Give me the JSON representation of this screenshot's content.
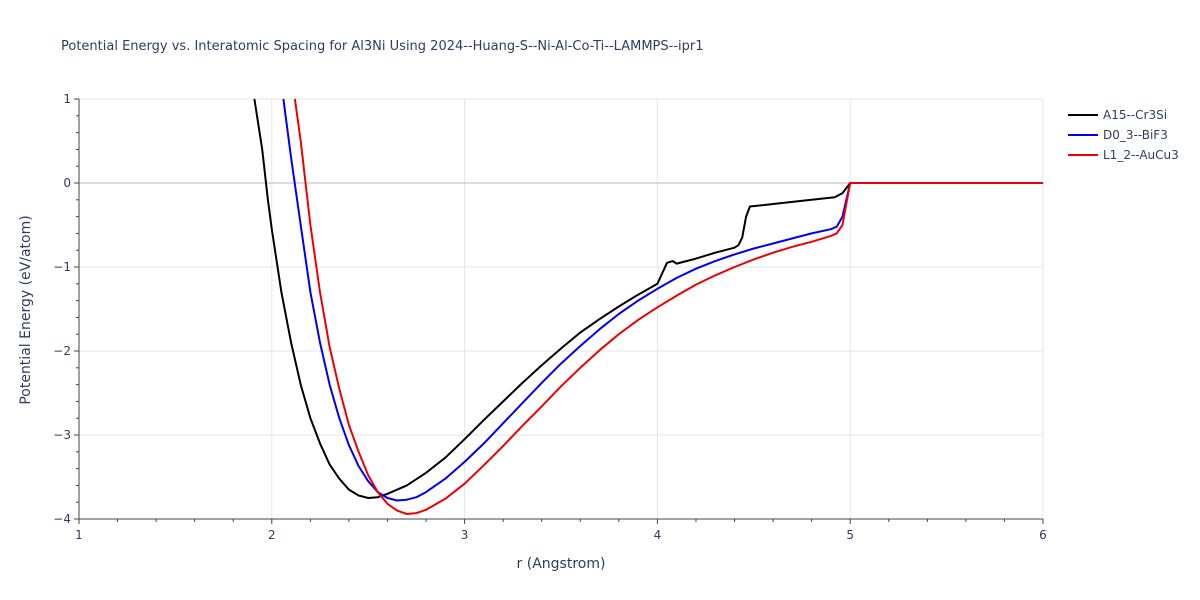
{
  "chart_data": {
    "type": "line",
    "title": "Potential Energy vs. Interatomic Spacing for Al3Ni Using 2024--Huang-S--Ni-Al-Co-Ti--LAMMPS--ipr1",
    "xlabel": "r (Angstrom)",
    "ylabel": "Potential Energy (eV/atom)",
    "xlim": [
      1,
      6
    ],
    "ylim": [
      -4,
      1
    ],
    "xticks": [
      1,
      2,
      3,
      4,
      5,
      6
    ],
    "yticks": [
      1,
      0,
      -1,
      -2,
      -3,
      -4
    ],
    "ytick_labels": [
      "1",
      "0",
      "−1",
      "−2",
      "−3",
      "−4"
    ],
    "grid": true,
    "legend_position": "top-right",
    "series": [
      {
        "name": "A15--Cr3Si",
        "color": "#000000",
        "points": [
          [
            1.91,
            1.0
          ],
          [
            1.95,
            0.4
          ],
          [
            1.98,
            -0.2
          ],
          [
            2.0,
            -0.55
          ],
          [
            2.05,
            -1.3
          ],
          [
            2.1,
            -1.9
          ],
          [
            2.15,
            -2.4
          ],
          [
            2.2,
            -2.8
          ],
          [
            2.25,
            -3.1
          ],
          [
            2.3,
            -3.35
          ],
          [
            2.35,
            -3.52
          ],
          [
            2.4,
            -3.65
          ],
          [
            2.45,
            -3.72
          ],
          [
            2.5,
            -3.75
          ],
          [
            2.55,
            -3.74
          ],
          [
            2.6,
            -3.7
          ],
          [
            2.7,
            -3.6
          ],
          [
            2.8,
            -3.45
          ],
          [
            2.9,
            -3.27
          ],
          [
            3.0,
            -3.05
          ],
          [
            3.1,
            -2.82
          ],
          [
            3.2,
            -2.6
          ],
          [
            3.3,
            -2.38
          ],
          [
            3.4,
            -2.17
          ],
          [
            3.5,
            -1.97
          ],
          [
            3.6,
            -1.78
          ],
          [
            3.7,
            -1.62
          ],
          [
            3.8,
            -1.47
          ],
          [
            3.9,
            -1.33
          ],
          [
            4.0,
            -1.2
          ],
          [
            4.05,
            -0.95
          ],
          [
            4.08,
            -0.93
          ],
          [
            4.1,
            -0.96
          ],
          [
            4.2,
            -0.9
          ],
          [
            4.3,
            -0.83
          ],
          [
            4.4,
            -0.77
          ],
          [
            4.42,
            -0.74
          ],
          [
            4.44,
            -0.65
          ],
          [
            4.46,
            -0.4
          ],
          [
            4.48,
            -0.28
          ],
          [
            4.6,
            -0.25
          ],
          [
            4.8,
            -0.2
          ],
          [
            4.92,
            -0.17
          ],
          [
            4.96,
            -0.12
          ],
          [
            5.0,
            0.0
          ],
          [
            6.0,
            0.0
          ]
        ]
      },
      {
        "name": "D0_3--BiF3",
        "color": "#0000ee",
        "points": [
          [
            2.06,
            1.0
          ],
          [
            2.1,
            0.3
          ],
          [
            2.15,
            -0.5
          ],
          [
            2.2,
            -1.3
          ],
          [
            2.25,
            -1.9
          ],
          [
            2.3,
            -2.4
          ],
          [
            2.35,
            -2.8
          ],
          [
            2.4,
            -3.12
          ],
          [
            2.45,
            -3.37
          ],
          [
            2.5,
            -3.55
          ],
          [
            2.55,
            -3.68
          ],
          [
            2.6,
            -3.75
          ],
          [
            2.65,
            -3.78
          ],
          [
            2.7,
            -3.77
          ],
          [
            2.75,
            -3.74
          ],
          [
            2.8,
            -3.68
          ],
          [
            2.9,
            -3.52
          ],
          [
            3.0,
            -3.32
          ],
          [
            3.1,
            -3.1
          ],
          [
            3.2,
            -2.86
          ],
          [
            3.3,
            -2.62
          ],
          [
            3.4,
            -2.38
          ],
          [
            3.5,
            -2.15
          ],
          [
            3.6,
            -1.94
          ],
          [
            3.7,
            -1.74
          ],
          [
            3.8,
            -1.56
          ],
          [
            3.9,
            -1.4
          ],
          [
            4.0,
            -1.26
          ],
          [
            4.1,
            -1.13
          ],
          [
            4.2,
            -1.02
          ],
          [
            4.3,
            -0.93
          ],
          [
            4.4,
            -0.85
          ],
          [
            4.5,
            -0.78
          ],
          [
            4.6,
            -0.72
          ],
          [
            4.7,
            -0.66
          ],
          [
            4.8,
            -0.6
          ],
          [
            4.9,
            -0.55
          ],
          [
            4.93,
            -0.52
          ],
          [
            4.96,
            -0.4
          ],
          [
            4.98,
            -0.2
          ],
          [
            5.0,
            0.0
          ],
          [
            6.0,
            0.0
          ]
        ]
      },
      {
        "name": "L1_2--AuCu3",
        "color": "#ee0000",
        "points": [
          [
            2.12,
            1.0
          ],
          [
            2.15,
            0.5
          ],
          [
            2.2,
            -0.5
          ],
          [
            2.25,
            -1.3
          ],
          [
            2.3,
            -1.95
          ],
          [
            2.35,
            -2.45
          ],
          [
            2.4,
            -2.88
          ],
          [
            2.45,
            -3.2
          ],
          [
            2.5,
            -3.48
          ],
          [
            2.55,
            -3.68
          ],
          [
            2.6,
            -3.82
          ],
          [
            2.65,
            -3.9
          ],
          [
            2.7,
            -3.94
          ],
          [
            2.75,
            -3.93
          ],
          [
            2.8,
            -3.89
          ],
          [
            2.9,
            -3.76
          ],
          [
            3.0,
            -3.58
          ],
          [
            3.1,
            -3.36
          ],
          [
            3.2,
            -3.13
          ],
          [
            3.3,
            -2.89
          ],
          [
            3.4,
            -2.66
          ],
          [
            3.5,
            -2.42
          ],
          [
            3.6,
            -2.2
          ],
          [
            3.7,
            -1.99
          ],
          [
            3.8,
            -1.8
          ],
          [
            3.9,
            -1.63
          ],
          [
            4.0,
            -1.48
          ],
          [
            4.1,
            -1.34
          ],
          [
            4.2,
            -1.21
          ],
          [
            4.3,
            -1.1
          ],
          [
            4.4,
            -1.0
          ],
          [
            4.5,
            -0.91
          ],
          [
            4.6,
            -0.83
          ],
          [
            4.7,
            -0.76
          ],
          [
            4.8,
            -0.7
          ],
          [
            4.9,
            -0.63
          ],
          [
            4.93,
            -0.6
          ],
          [
            4.96,
            -0.5
          ],
          [
            4.98,
            -0.25
          ],
          [
            5.0,
            0.0
          ],
          [
            6.0,
            0.0
          ]
        ]
      }
    ]
  }
}
